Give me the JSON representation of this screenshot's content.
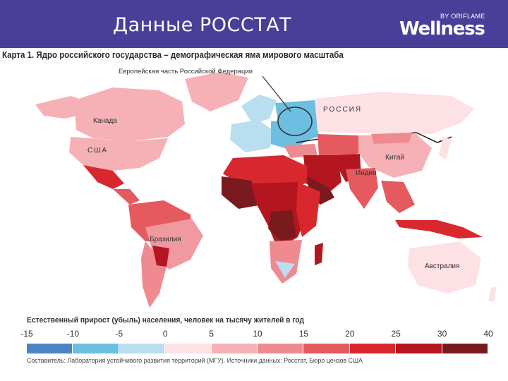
{
  "slide": {
    "title": "Данные РОССТАТ",
    "brand_name": "Wellness",
    "brand_by": "BY ORIFLAME"
  },
  "map": {
    "caption": "Карта 1. Ядро российского государства – демографическая яма мирового масштаба",
    "callout": "Европейская часть Российской Федерации",
    "labels": {
      "russia": "РОССИЯ",
      "canada": "Канада",
      "usa": "США",
      "china": "Китай",
      "india": "Индия",
      "brazil": "Бразилия",
      "australia": "Австралия"
    }
  },
  "legend": {
    "title": "Естественный прирост (убыль) населения, человек на тысячу жителей в год",
    "ticks": [
      "-15",
      "-10",
      "-5",
      "0",
      "5",
      "10",
      "15",
      "20",
      "25",
      "30",
      "40"
    ],
    "colors": [
      "#4a86c5",
      "#6cbfe0",
      "#b9def0",
      "#fde1e4",
      "#f6b1b6",
      "#ee8a90",
      "#e45a5e",
      "#d8282d",
      "#b4161f",
      "#7a1a1f"
    ],
    "source": "Составитель: Лаборатория устойчивого развития территорий (МГУ). Источники данных: Росстат, Бюро цензов США"
  }
}
